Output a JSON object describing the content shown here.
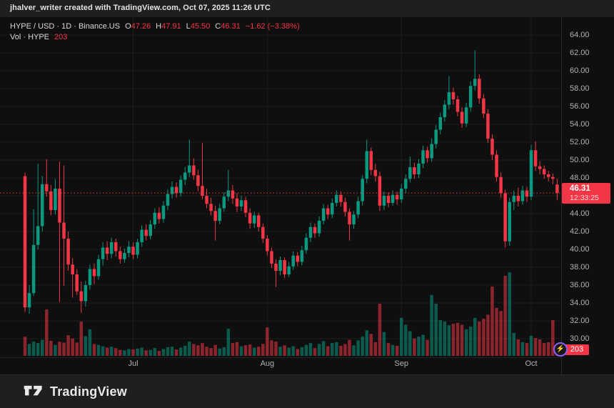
{
  "attribution": {
    "text": "jhalver_writer created with TradingView.com, Oct 07, 2025 11:26 UTC"
  },
  "legend": {
    "symbol_line": "HYPE / USD · 1D · Binance.US",
    "ohlc": [
      {
        "label": "O",
        "value": "47.26"
      },
      {
        "label": "H",
        "value": "47.91"
      },
      {
        "label": "L",
        "value": "45.50"
      },
      {
        "label": "C",
        "value": "46.31"
      }
    ],
    "change": "−1.62 (−3.38%)",
    "vol_label": "Vol · HYPE",
    "vol_value": "203"
  },
  "price_axis": {
    "ticks": [
      64,
      62,
      60,
      58,
      56,
      54,
      52,
      50,
      48,
      46,
      44,
      42,
      40,
      38,
      36,
      34,
      32,
      30
    ],
    "last_price": "46.31",
    "countdown": "12:33:25",
    "volume_badge": "203"
  },
  "time_axis": {
    "labels": [
      {
        "text": "Jul",
        "candle_index": 25
      },
      {
        "text": "Aug",
        "candle_index": 56
      },
      {
        "text": "Sep",
        "candle_index": 87
      },
      {
        "text": "Oct",
        "candle_index": 117
      }
    ]
  },
  "footer": {
    "brand": "TradingView"
  },
  "colors": {
    "up": "#089981",
    "down": "#f23645",
    "volume_up": "rgba(8,153,129,0.55)",
    "volume_down": "rgba(242,54,69,0.55)",
    "grid": "#1d1d1d",
    "price_line": "#f23645",
    "axis_text": "#b2b2b2",
    "chart_bg": "#0f0f0f",
    "frame_bg": "#1e1f20",
    "badge_bg": "#f23645"
  },
  "chart_data": {
    "type": "candlestick",
    "title": "HYPE / USD",
    "interval": "1D",
    "exchange": "Binance.US",
    "last_ohlc": {
      "open": 47.26,
      "high": 47.91,
      "low": 45.5,
      "close": 46.31,
      "change": -1.62,
      "change_pct": -3.38
    },
    "price_line_value": 46.31,
    "countdown": "12:33:25",
    "last_volume": 203,
    "ylim": [
      30,
      64
    ],
    "y_tick_step": 2,
    "grid": true,
    "x_month_labels": [
      "Jul",
      "Aug",
      "Sep",
      "Oct"
    ],
    "columns": [
      "date",
      "open",
      "high",
      "low",
      "close",
      "volume_est"
    ],
    "candles": [
      [
        "Jun 6",
        48.2,
        48.6,
        33.0,
        33.5,
        420
      ],
      [
        "Jun 7",
        33.5,
        36.0,
        32.8,
        35.1,
        260
      ],
      [
        "Jun 8",
        35.1,
        44.5,
        34.8,
        40.5,
        310
      ],
      [
        "Jun 9",
        40.5,
        49.6,
        40.0,
        42.6,
        280
      ],
      [
        "Jun 10",
        42.6,
        48.2,
        42.0,
        47.3,
        350
      ],
      [
        "Jun 11",
        47.3,
        50.1,
        45.9,
        46.5,
        1015
      ],
      [
        "Jun 12",
        46.5,
        47.2,
        43.8,
        44.4,
        330
      ],
      [
        "Jun 13",
        44.4,
        47.9,
        43.9,
        46.8,
        240
      ],
      [
        "Jun 14",
        46.8,
        49.8,
        34.1,
        43.0,
        310
      ],
      [
        "Jun 15",
        43.0,
        49.4,
        35.9,
        41.2,
        290
      ],
      [
        "Jun 16",
        41.2,
        42.0,
        37.6,
        38.3,
        450
      ],
      [
        "Jun 17",
        38.3,
        39.0,
        34.6,
        37.2,
        380
      ],
      [
        "Jun 18",
        37.2,
        37.8,
        34.9,
        35.3,
        290
      ],
      [
        "Jun 19",
        35.3,
        36.4,
        32.9,
        34.2,
        750
      ],
      [
        "Jun 20",
        34.2,
        36.5,
        33.6,
        36.0,
        430
      ],
      [
        "Jun 21",
        36.0,
        38.3,
        35.5,
        37.8,
        580
      ],
      [
        "Jun 22",
        37.8,
        38.4,
        36.1,
        37.0,
        260
      ],
      [
        "Jun 23",
        37.0,
        39.4,
        36.6,
        38.9,
        240
      ],
      [
        "Jun 24",
        38.9,
        40.8,
        38.2,
        40.2,
        210
      ],
      [
        "Jun 25",
        40.2,
        40.9,
        38.8,
        39.5,
        180
      ],
      [
        "Jun 26",
        39.5,
        41.3,
        39.0,
        40.8,
        200
      ],
      [
        "Jun 27",
        40.8,
        41.2,
        39.2,
        39.8,
        170
      ],
      [
        "Jun 28",
        39.8,
        40.3,
        38.4,
        38.9,
        130
      ],
      [
        "Jun 29",
        38.9,
        40.1,
        38.5,
        39.6,
        120
      ],
      [
        "Jun 30",
        39.6,
        40.9,
        39.1,
        40.3,
        150
      ],
      [
        "Jul 1",
        40.3,
        40.8,
        38.9,
        39.4,
        140
      ],
      [
        "Jul 2",
        39.4,
        41.2,
        39.0,
        40.8,
        160
      ],
      [
        "Jul 3",
        40.8,
        42.7,
        40.3,
        42.2,
        180
      ],
      [
        "Jul 4",
        42.2,
        42.8,
        41.0,
        41.5,
        120
      ],
      [
        "Jul 5",
        41.5,
        43.3,
        41.1,
        42.8,
        130
      ],
      [
        "Jul 6",
        42.8,
        44.6,
        42.3,
        44.1,
        170
      ],
      [
        "Jul 7",
        44.1,
        44.7,
        42.9,
        43.4,
        110
      ],
      [
        "Jul 8",
        43.4,
        45.4,
        43.0,
        44.9,
        150
      ],
      [
        "Jul 9",
        44.9,
        46.7,
        44.4,
        46.2,
        190
      ],
      [
        "Jul 10",
        46.2,
        47.6,
        45.7,
        47.0,
        200
      ],
      [
        "Jul 11",
        47.0,
        47.5,
        45.8,
        46.3,
        140
      ],
      [
        "Jul 12",
        46.3,
        48.3,
        45.9,
        47.8,
        180
      ],
      [
        "Jul 13",
        47.8,
        49.2,
        47.2,
        48.6,
        220
      ],
      [
        "Jul 14",
        48.6,
        52.3,
        48.1,
        49.4,
        310
      ],
      [
        "Jul 15",
        49.4,
        50.2,
        47.8,
        48.3,
        260
      ],
      [
        "Jul 16",
        48.3,
        48.9,
        46.5,
        47.1,
        230
      ],
      [
        "Jul 17",
        47.1,
        51.9,
        45.6,
        46.0,
        280
      ],
      [
        "Jul 18",
        46.0,
        46.8,
        44.6,
        45.1,
        200
      ],
      [
        "Jul 19",
        45.1,
        45.8,
        43.8,
        44.3,
        170
      ],
      [
        "Jul 20",
        44.3,
        44.9,
        41.0,
        43.2,
        240
      ],
      [
        "Jul 21",
        43.2,
        45.1,
        42.8,
        44.6,
        160
      ],
      [
        "Jul 22",
        44.6,
        46.4,
        44.2,
        45.9,
        190
      ],
      [
        "Jul 23",
        45.9,
        48.9,
        45.4,
        46.6,
        590
      ],
      [
        "Jul 24",
        46.6,
        47.2,
        45.1,
        45.7,
        280
      ],
      [
        "Jul 25",
        45.7,
        46.3,
        44.2,
        44.8,
        300
      ],
      [
        "Jul 26",
        44.8,
        46.0,
        44.3,
        45.5,
        210
      ],
      [
        "Jul 27",
        45.5,
        45.9,
        43.6,
        44.1,
        230
      ],
      [
        "Jul 28",
        44.1,
        44.6,
        42.3,
        42.9,
        250
      ],
      [
        "Jul 29",
        42.9,
        44.2,
        42.4,
        43.8,
        180
      ],
      [
        "Jul 30",
        43.8,
        44.1,
        42.0,
        42.5,
        200
      ],
      [
        "Jul 31",
        42.5,
        42.9,
        40.7,
        41.2,
        260
      ],
      [
        "Aug 1",
        41.2,
        41.6,
        39.3,
        39.8,
        620
      ],
      [
        "Aug 2",
        39.8,
        40.2,
        37.9,
        38.4,
        340
      ],
      [
        "Aug 3",
        38.4,
        38.9,
        35.8,
        37.6,
        310
      ],
      [
        "Aug 4",
        37.6,
        39.2,
        37.1,
        38.8,
        200
      ],
      [
        "Aug 5",
        38.8,
        39.1,
        36.8,
        37.2,
        230
      ],
      [
        "Aug 6",
        37.2,
        38.6,
        36.9,
        38.1,
        180
      ],
      [
        "Aug 7",
        38.1,
        39.8,
        37.7,
        39.3,
        210
      ],
      [
        "Aug 8",
        39.3,
        39.7,
        38.1,
        38.6,
        150
      ],
      [
        "Aug 9",
        38.6,
        40.4,
        38.2,
        39.9,
        190
      ],
      [
        "Aug 10",
        39.9,
        41.8,
        39.5,
        41.3,
        240
      ],
      [
        "Aug 11",
        41.3,
        43.0,
        40.8,
        42.5,
        280
      ],
      [
        "Aug 12",
        42.5,
        42.9,
        41.3,
        41.8,
        170
      ],
      [
        "Aug 13",
        41.8,
        43.7,
        41.4,
        43.2,
        260
      ],
      [
        "Aug 14",
        43.2,
        45.1,
        42.8,
        44.6,
        320
      ],
      [
        "Aug 15",
        44.6,
        45.0,
        43.4,
        43.9,
        210
      ],
      [
        "Aug 16",
        43.9,
        45.7,
        43.5,
        45.2,
        280
      ],
      [
        "Aug 17",
        45.2,
        46.6,
        44.8,
        46.1,
        300
      ],
      [
        "Aug 18",
        46.1,
        46.5,
        44.8,
        45.3,
        220
      ],
      [
        "Aug 19",
        45.3,
        45.8,
        43.7,
        44.2,
        260
      ],
      [
        "Aug 20",
        44.2,
        44.6,
        41.0,
        42.8,
        350
      ],
      [
        "Aug 21",
        42.8,
        44.3,
        42.3,
        43.9,
        230
      ],
      [
        "Aug 22",
        43.9,
        45.9,
        43.5,
        45.4,
        340
      ],
      [
        "Aug 23",
        45.4,
        48.3,
        44.9,
        47.9,
        420
      ],
      [
        "Aug 24",
        47.9,
        52.3,
        47.4,
        51.0,
        560
      ],
      [
        "Aug 25",
        51.0,
        51.4,
        48.3,
        48.9,
        480
      ],
      [
        "Aug 26",
        48.9,
        49.6,
        47.6,
        48.2,
        300
      ],
      [
        "Aug 27",
        48.2,
        48.7,
        44.3,
        44.9,
        1140
      ],
      [
        "Aug 28",
        44.9,
        46.5,
        44.4,
        46.0,
        520
      ],
      [
        "Aug 29",
        46.0,
        46.4,
        44.7,
        45.2,
        280
      ],
      [
        "Aug 30",
        45.2,
        46.6,
        44.9,
        46.1,
        240
      ],
      [
        "Aug 31",
        46.1,
        46.5,
        45.0,
        45.6,
        220
      ],
      [
        "Sep 1",
        45.6,
        47.3,
        45.2,
        46.8,
        830
      ],
      [
        "Sep 2",
        46.8,
        48.4,
        46.3,
        47.9,
        680
      ],
      [
        "Sep 3",
        47.9,
        50.4,
        47.5,
        49.2,
        540
      ],
      [
        "Sep 4",
        49.2,
        49.7,
        47.9,
        48.4,
        380
      ],
      [
        "Sep 5",
        48.4,
        50.1,
        48.0,
        49.6,
        420
      ],
      [
        "Sep 6",
        49.6,
        51.6,
        49.1,
        51.1,
        460
      ],
      [
        "Sep 7",
        51.1,
        51.5,
        49.7,
        50.2,
        350
      ],
      [
        "Sep 8",
        50.2,
        52.4,
        49.8,
        51.8,
        1330
      ],
      [
        "Sep 9",
        51.8,
        53.9,
        51.3,
        53.4,
        1140
      ],
      [
        "Sep 10",
        53.4,
        55.3,
        52.9,
        54.8,
        780
      ],
      [
        "Sep 11",
        54.8,
        56.7,
        54.3,
        56.2,
        750
      ],
      [
        "Sep 12",
        56.2,
        59.4,
        55.7,
        57.6,
        670
      ],
      [
        "Sep 13",
        57.6,
        58.1,
        56.2,
        56.8,
        700
      ],
      [
        "Sep 14",
        56.8,
        57.2,
        54.9,
        55.4,
        720
      ],
      [
        "Sep 15",
        55.4,
        55.9,
        53.6,
        54.1,
        680
      ],
      [
        "Sep 16",
        54.1,
        56.4,
        53.7,
        55.9,
        580
      ],
      [
        "Sep 17",
        55.9,
        58.8,
        55.4,
        58.3,
        640
      ],
      [
        "Sep 18",
        58.3,
        62.3,
        57.8,
        59.1,
        830
      ],
      [
        "Sep 19",
        59.1,
        59.6,
        56.3,
        56.9,
        750
      ],
      [
        "Sep 20",
        56.9,
        57.4,
        54.7,
        55.2,
        810
      ],
      [
        "Sep 21",
        55.2,
        55.7,
        51.9,
        52.4,
        900
      ],
      [
        "Sep 22",
        52.4,
        52.9,
        50.0,
        50.6,
        1515
      ],
      [
        "Sep 23",
        50.6,
        51.1,
        47.6,
        48.1,
        1050
      ],
      [
        "Sep 24",
        48.1,
        48.6,
        45.8,
        46.3,
        980
      ],
      [
        "Sep 25",
        46.3,
        46.7,
        40.2,
        40.9,
        1750
      ],
      [
        "Sep 26",
        40.9,
        45.8,
        40.4,
        45.3,
        1825
      ],
      [
        "Sep 27",
        45.3,
        46.6,
        44.4,
        46.0,
        500
      ],
      [
        "Sep 28",
        46.0,
        46.9,
        44.8,
        45.4,
        360
      ],
      [
        "Sep 29",
        45.4,
        47.1,
        45.0,
        46.6,
        300
      ],
      [
        "Sep 30",
        46.6,
        47.0,
        45.3,
        45.9,
        280
      ],
      [
        "Oct 1",
        45.9,
        51.7,
        45.5,
        51.1,
        440
      ],
      [
        "Oct 2",
        51.1,
        52.1,
        48.8,
        49.3,
        390
      ],
      [
        "Oct 3",
        49.3,
        49.9,
        48.4,
        49.0,
        360
      ],
      [
        "Oct 4",
        49.0,
        49.4,
        47.9,
        48.4,
        280
      ],
      [
        "Oct 5",
        48.4,
        48.8,
        47.6,
        48.1,
        300
      ],
      [
        "Oct 6",
        48.1,
        48.5,
        47.3,
        47.9,
        780
      ],
      [
        "Oct 7",
        47.26,
        47.91,
        45.5,
        46.31,
        203
      ]
    ]
  }
}
